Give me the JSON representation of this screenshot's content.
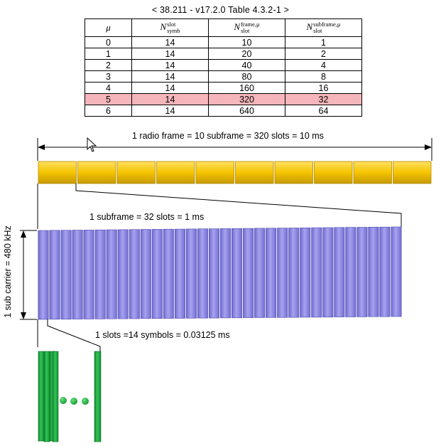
{
  "caption": "< 38.211 - v17.2.0 Table 4.3.2-1 >",
  "table": {
    "headers": {
      "mu": "μ",
      "symb": {
        "main": "N",
        "sup": "slot",
        "sub": "symb"
      },
      "frame": {
        "main": "N",
        "sup": "frame,μ",
        "sub": "slot"
      },
      "subframe": {
        "main": "N",
        "sup": "subframe,μ",
        "sub": "slot"
      }
    },
    "rows": [
      [
        "0",
        "14",
        "10",
        "1"
      ],
      [
        "1",
        "14",
        "20",
        "2"
      ],
      [
        "2",
        "14",
        "40",
        "4"
      ],
      [
        "3",
        "14",
        "80",
        "8"
      ],
      [
        "4",
        "14",
        "160",
        "16"
      ],
      [
        "5",
        "14",
        "320",
        "32"
      ],
      [
        "6",
        "14",
        "640",
        "64"
      ]
    ],
    "highlight_row": 5,
    "highlight_color": "#f4b6bb"
  },
  "labels": {
    "radio_frame": "1 radio frame = 10 subframe = 320 slots = 10 ms",
    "subframe": "1 subframe = 32 slots = 1 ms",
    "subcarrier": "1 sub carrier = 480 kHz",
    "slot": "1 slots =14 symbols = 0.03125 ms"
  },
  "diagram": {
    "subframe_count": 10,
    "slot_count": 32,
    "colors": {
      "subframe": "#f5c400",
      "slot": "#8b86de",
      "symbol": "#1fae3f"
    }
  }
}
